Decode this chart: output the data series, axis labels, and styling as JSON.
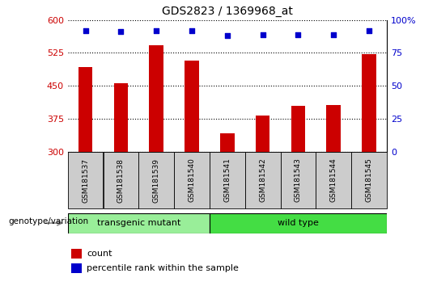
{
  "title": "GDS2823 / 1369968_at",
  "samples": [
    "GSM181537",
    "GSM181538",
    "GSM181539",
    "GSM181540",
    "GSM181541",
    "GSM181542",
    "GSM181543",
    "GSM181544",
    "GSM181545"
  ],
  "counts": [
    493,
    455,
    543,
    507,
    342,
    383,
    405,
    407,
    523
  ],
  "percentiles": [
    92,
    91,
    92,
    92,
    88,
    89,
    89,
    89,
    92
  ],
  "ylim_left": [
    300,
    600
  ],
  "ylim_right": [
    0,
    100
  ],
  "yticks_left": [
    300,
    375,
    450,
    525,
    600
  ],
  "yticks_right": [
    0,
    25,
    50,
    75,
    100
  ],
  "bar_color": "#cc0000",
  "dot_color": "#0000cc",
  "transgenic_color": "#99ee99",
  "wildtype_color": "#44dd44",
  "transgenic_label": "transgenic mutant",
  "wildtype_label": "wild type",
  "transgenic_samples": 4,
  "wildtype_samples": 5,
  "xlabel_bottom": "genotype/variation",
  "legend_count_label": "count",
  "legend_pct_label": "percentile rank within the sample",
  "background_color": "#ffffff",
  "label_area_color": "#cccccc",
  "bar_width": 0.4
}
